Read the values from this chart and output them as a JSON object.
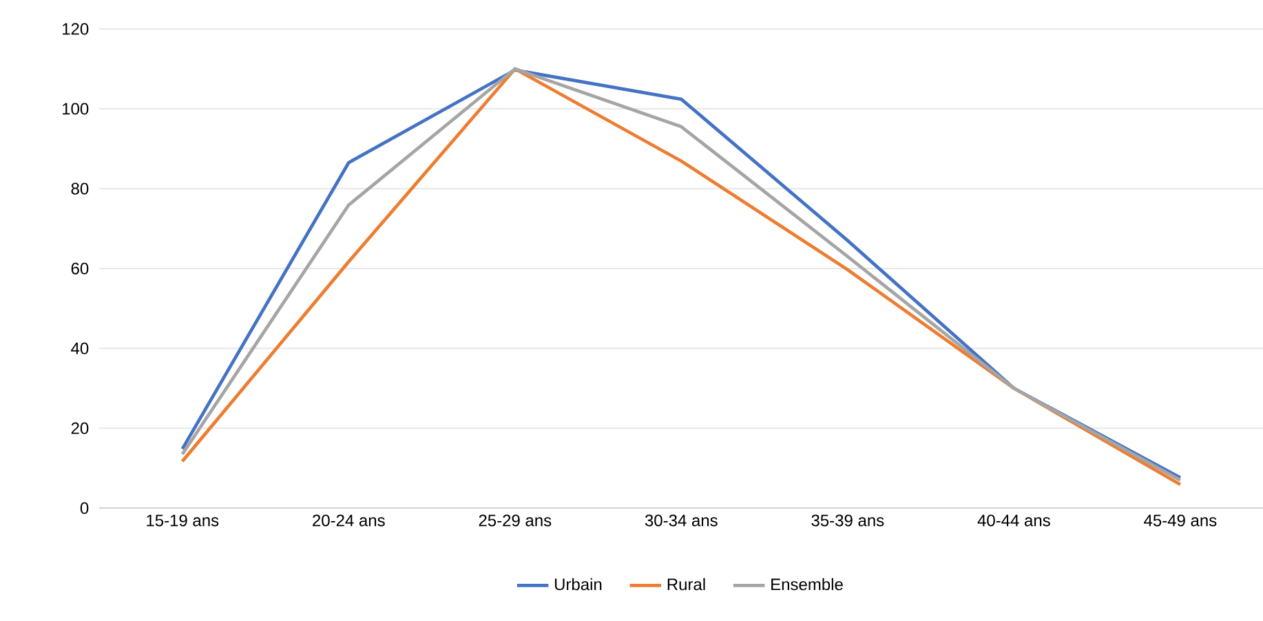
{
  "chart_data": {
    "type": "line",
    "categories": [
      "15-19 ans",
      "20-24 ans",
      "25-29 ans",
      "30-34 ans",
      "35-39 ans",
      "40-44 ans",
      "45-49 ans"
    ],
    "series": [
      {
        "name": "Urbain",
        "color": "#4472c4",
        "values": [
          14.8,
          86.5,
          109.7,
          102.4,
          67,
          30,
          7.6
        ]
      },
      {
        "name": "Rural",
        "color": "#ed7d31",
        "values": [
          11.7,
          61.7,
          110,
          86.9,
          59.7,
          30,
          5.9
        ]
      },
      {
        "name": "Ensemble",
        "color": "#a5a5a5",
        "values": [
          13.5,
          75.9,
          110,
          95.5,
          63,
          30,
          7
        ]
      }
    ],
    "ylim": [
      0,
      120
    ],
    "yticks": [
      0,
      20,
      40,
      60,
      80,
      100,
      120
    ],
    "grid": "y",
    "legend": "bottom",
    "marker": "none",
    "line_style": "solid"
  }
}
